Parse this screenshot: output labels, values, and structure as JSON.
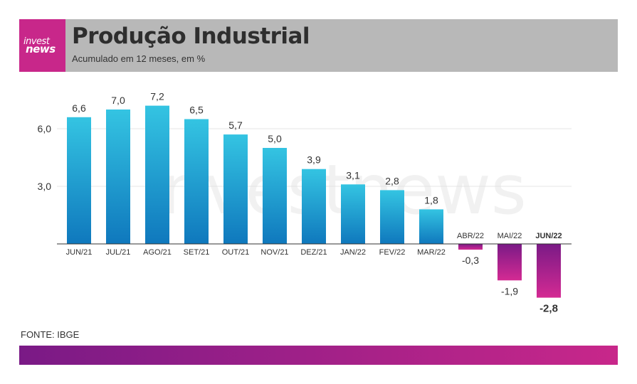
{
  "header": {
    "logo_top": "invest",
    "logo_bottom": "news",
    "title": "Produção Industrial",
    "subtitle": "Acumulado em 12 meses, em %"
  },
  "watermark": "investnews",
  "footer": {
    "source": "FONTE: IBGE"
  },
  "colors": {
    "positive_top": "#34c4e2",
    "positive_bottom": "#0f78bd",
    "negative_top": "#7a1a86",
    "negative_bottom": "#d42a93",
    "header_bg": "#b8b8b8",
    "logo_bg": "#c8278a"
  },
  "chart_data": {
    "type": "bar",
    "categories": [
      "JUN/21",
      "JUL/21",
      "AGO/21",
      "SET/21",
      "OUT/21",
      "NOV/21",
      "DEZ/21",
      "JAN/22",
      "FEV/22",
      "MAR/22",
      "ABR/22",
      "MAI/22",
      "JUN/22"
    ],
    "values": [
      6.6,
      7.0,
      7.2,
      6.5,
      5.7,
      5.0,
      3.9,
      3.1,
      2.8,
      1.8,
      -0.3,
      -1.9,
      -2.8
    ],
    "labels": [
      "6,6",
      "7,0",
      "7,2",
      "6,5",
      "5,7",
      "5,0",
      "3,9",
      "3,1",
      "2,8",
      "1,8",
      "-0,3",
      "-1,9",
      "-2,8"
    ],
    "highlight_index": 12,
    "yticks": [
      3.0,
      6.0
    ],
    "ytick_labels": [
      "3,0",
      "6,0"
    ],
    "ylim": [
      -3.5,
      8
    ],
    "grid": true,
    "legend": "none"
  }
}
